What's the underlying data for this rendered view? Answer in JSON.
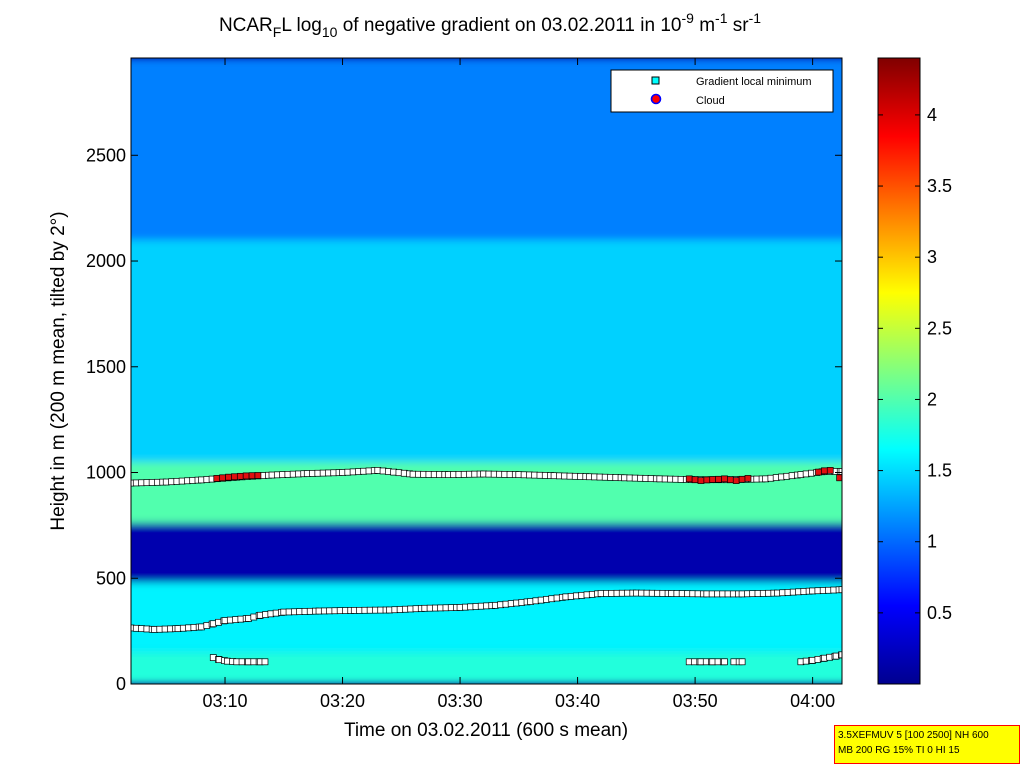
{
  "chart_data": {
    "type": "heatmap",
    "title": {
      "part1": "NCAR",
      "sub1": "F",
      "part2": "L log",
      "sub2": "10",
      "part3": " of negative gradient on 03.02.2011 in 10",
      "sup1": "-9",
      "part4": " m",
      "sup2": "-1",
      "part5": " sr",
      "sup3": "-1"
    },
    "xlabel": "Time on 03.02.2011 (600 s mean)",
    "ylabel": "Height in m (200 m mean, tilted by 2°)",
    "xlim_minutes": [
      182,
      242.5
    ],
    "ylim": [
      0,
      2960
    ],
    "xticks": [
      {
        "minutes": 190,
        "label": "03:10"
      },
      {
        "minutes": 200,
        "label": "03:20"
      },
      {
        "minutes": 210,
        "label": "03:30"
      },
      {
        "minutes": 220,
        "label": "03:40"
      },
      {
        "minutes": 230,
        "label": "03:50"
      },
      {
        "minutes": 240,
        "label": "04:00"
      }
    ],
    "yticks": [
      0,
      500,
      1000,
      1500,
      2000,
      2500
    ],
    "colorbar": {
      "range": [
        0,
        4.4
      ],
      "ticks": [
        0.5,
        1,
        1.5,
        2,
        2.5,
        3,
        3.5,
        4
      ],
      "tick_labels": [
        "0.5",
        "1",
        "1.5",
        "2",
        "2.5",
        "3",
        "3.5",
        "4"
      ],
      "colors": [
        "#00008f",
        "#0000ff",
        "#0080ff",
        "#00ffff",
        "#80ff80",
        "#ffff00",
        "#ff8000",
        "#ff0000",
        "#800000"
      ]
    },
    "layers": [
      {
        "name": "ground-layer",
        "bottom": 0,
        "top": 150,
        "value": 1.8
      },
      {
        "name": "lower-layer",
        "bottom": 150,
        "top": 480,
        "value": 1.6
      },
      {
        "name": "clear-gap",
        "bottom": 480,
        "top": 760,
        "value": 0.15
      },
      {
        "name": "cloud-base-layer",
        "bottom": 760,
        "top": 1050,
        "value": 2.0
      },
      {
        "name": "mid-layer",
        "bottom": 1050,
        "top": 2100,
        "value": 1.45
      },
      {
        "name": "upper-layer",
        "bottom": 2100,
        "top": 2960,
        "value": 1.1
      }
    ],
    "legend": {
      "position": "top-right",
      "entries": [
        {
          "label": "Gradient local minimum",
          "marker": "square",
          "color": "#00ffff"
        },
        {
          "label": "Cloud",
          "marker": "circle",
          "color": "#ff0000",
          "edge": "#0000ff"
        }
      ]
    },
    "series": [
      {
        "name": "Gradient local minimum (cloud-base line)",
        "x_minutes": [
          182,
          185,
          188,
          191,
          194,
          197,
          200,
          203,
          206,
          209,
          212,
          215,
          218,
          221,
          224,
          227,
          230,
          233,
          236,
          239,
          241,
          242.5
        ],
        "y": [
          950,
          955,
          965,
          978,
          988,
          995,
          1000,
          1010,
          992,
          990,
          993,
          990,
          985,
          980,
          975,
          970,
          966,
          966,
          970,
          990,
          1005,
          1005
        ]
      },
      {
        "name": "Gradient local minimum (lower line)",
        "x_minutes": [
          182,
          184,
          186,
          188,
          189,
          190,
          192,
          193,
          195,
          198,
          201,
          204,
          207,
          210,
          213,
          216,
          219,
          222,
          225,
          228,
          231,
          234,
          237,
          240,
          242.5
        ],
        "y": [
          265,
          258,
          262,
          270,
          285,
          300,
          310,
          325,
          340,
          345,
          348,
          350,
          358,
          362,
          372,
          390,
          412,
          428,
          430,
          428,
          426,
          426,
          430,
          440,
          446
        ]
      },
      {
        "name": "Gradient local minimum (near-ground segment)",
        "x_minutes": [
          189,
          189.5,
          190.2,
          191,
          192,
          193,
          193.4
        ],
        "y": [
          125,
          115,
          108,
          105,
          105,
          105,
          105
        ]
      },
      {
        "name": "Gradient local minimum (near-ground 03:50)",
        "x_minutes": [
          229.5,
          230.5,
          231.5,
          232.5
        ],
        "y": [
          105,
          105,
          105,
          105
        ]
      },
      {
        "name": "Gradient local minimum (near-ground 03:53)",
        "x_minutes": [
          233.3,
          234
        ],
        "y": [
          105,
          105
        ]
      },
      {
        "name": "Gradient local minimum (near-ground 04:00)",
        "x_minutes": [
          239,
          240,
          241,
          242,
          242.5
        ],
        "y": [
          105,
          112,
          122,
          132,
          138
        ]
      },
      {
        "name": "Cloud",
        "x_minutes": [
          189.3,
          189.8,
          190.3,
          190.8,
          191.3,
          191.8,
          192.3,
          192.8,
          229.5,
          230,
          230.5,
          231,
          231.5,
          232,
          232.5,
          233,
          233.5,
          234,
          234.5,
          240.5,
          241,
          241.5,
          242.3
        ],
        "y": [
          972,
          975,
          978,
          980,
          982,
          984,
          985,
          986,
          970,
          966,
          962,
          965,
          967,
          968,
          970,
          966,
          962,
          968,
          972,
          1002,
          1008,
          1010,
          975
        ]
      }
    ],
    "info_box": [
      "3.5XEFMUV 5 [100 2500] NH 600",
      "MB 200 RG 15% TI 0 HI 15"
    ]
  }
}
